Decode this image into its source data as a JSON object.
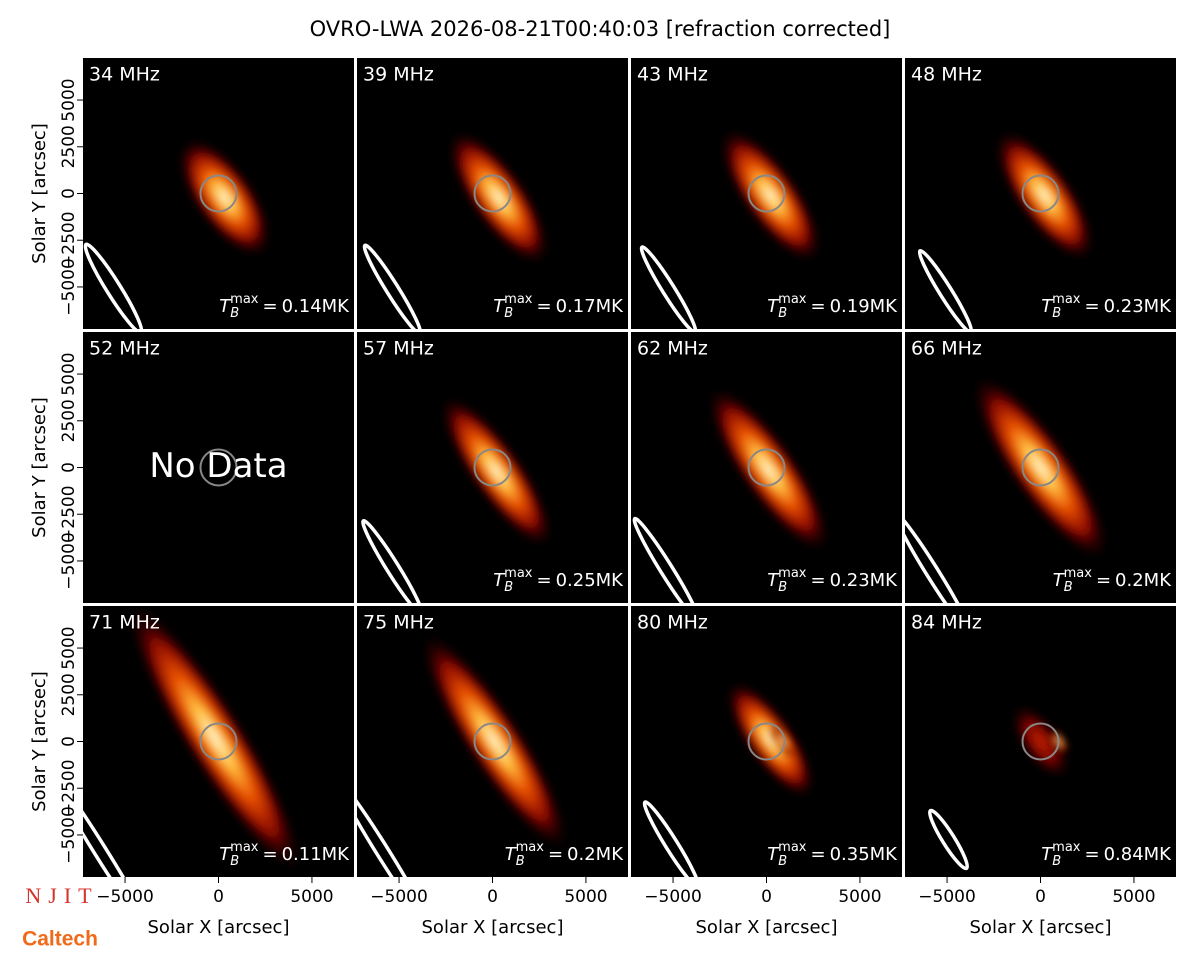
{
  "title": "OVRO-LWA 2026-08-21T00:40:03 [refraction corrected]",
  "logos": [
    "NJIT",
    "Caltech"
  ],
  "chart_data": [
    {
      "type": "image",
      "title": "34 MHz",
      "annotation": {
        "symbol": "T",
        "sub": "B",
        "sup": "max",
        "eq": "=",
        "value": "0.14MK"
      },
      "xlim": [
        -7250,
        7250
      ],
      "ylim": [
        -7250,
        7250
      ],
      "ylabel": "Solar Y [arcsec]",
      "yticks": [
        {
          "value": -5000,
          "label": "−5000"
        },
        {
          "value": -2500,
          "label": "−2500"
        },
        0,
        2500,
        5000
      ]
    },
    {
      "type": "image",
      "title": "39 MHz",
      "annotation": {
        "symbol": "T",
        "sub": "B",
        "sup": "max",
        "eq": "=",
        "value": "0.17MK"
      },
      "xlim": [
        -7250,
        7250
      ],
      "ylim": [
        -7250,
        7250
      ]
    },
    {
      "type": "image",
      "title": "43 MHz",
      "annotation": {
        "symbol": "T",
        "sub": "B",
        "sup": "max",
        "eq": "=",
        "value": "0.19MK"
      },
      "xlim": [
        -7250,
        7250
      ],
      "ylim": [
        -7250,
        7250
      ]
    },
    {
      "type": "image",
      "title": "48 MHz",
      "annotation": {
        "symbol": "T",
        "sub": "B",
        "sup": "max",
        "eq": "=",
        "value": "0.23MK"
      },
      "xlim": [
        -7250,
        7250
      ],
      "ylim": [
        -7250,
        7250
      ]
    },
    {
      "type": "image",
      "title": "52 MHz",
      "text": "No Data",
      "xlim": [
        -7250,
        7250
      ],
      "ylim": [
        -7250,
        7250
      ],
      "ylabel": "Solar Y [arcsec]",
      "yticks": [
        {
          "value": -5000,
          "label": "−5000"
        },
        {
          "value": -2500,
          "label": "−2500"
        },
        0,
        2500,
        5000
      ]
    },
    {
      "type": "image",
      "title": "57 MHz",
      "annotation": {
        "symbol": "T",
        "sub": "B",
        "sup": "max",
        "eq": "=",
        "value": "0.25MK"
      },
      "xlim": [
        -7250,
        7250
      ],
      "ylim": [
        -7250,
        7250
      ]
    },
    {
      "type": "image",
      "title": "62 MHz",
      "annotation": {
        "symbol": "T",
        "sub": "B",
        "sup": "max",
        "eq": "=",
        "value": "0.23MK"
      },
      "xlim": [
        -7250,
        7250
      ],
      "ylim": [
        -7250,
        7250
      ]
    },
    {
      "type": "image",
      "title": "66 MHz",
      "annotation": {
        "symbol": "T",
        "sub": "B",
        "sup": "max",
        "eq": "=",
        "value": "0.2MK"
      },
      "xlim": [
        -7250,
        7250
      ],
      "ylim": [
        -7250,
        7250
      ]
    },
    {
      "type": "image",
      "title": "71 MHz",
      "annotation": {
        "symbol": "T",
        "sub": "B",
        "sup": "max",
        "eq": "=",
        "value": "0.11MK"
      },
      "xlim": [
        -7250,
        7250
      ],
      "ylim": [
        -7250,
        7250
      ],
      "ylabel": "Solar Y [arcsec]",
      "yticks": [
        {
          "value": -5000,
          "label": "−5000"
        },
        {
          "value": -2500,
          "label": "−2500"
        },
        0,
        2500,
        5000
      ],
      "xlabel": "Solar X [arcsec]",
      "xticks": [
        {
          "value": -5000,
          "label": "−5000"
        },
        0,
        5000
      ]
    },
    {
      "type": "image",
      "title": "75 MHz",
      "annotation": {
        "symbol": "T",
        "sub": "B",
        "sup": "max",
        "eq": "=",
        "value": "0.2MK"
      },
      "xlim": [
        -7250,
        7250
      ],
      "ylim": [
        -7250,
        7250
      ],
      "xlabel": "Solar X [arcsec]",
      "xticks": [
        {
          "value": -5000,
          "label": "−5000"
        },
        0,
        5000
      ]
    },
    {
      "type": "image",
      "title": "80 MHz",
      "annotation": {
        "symbol": "T",
        "sub": "B",
        "sup": "max",
        "eq": "=",
        "value": "0.35MK"
      },
      "xlim": [
        -7250,
        7250
      ],
      "ylim": [
        -7250,
        7250
      ],
      "xlabel": "Solar X [arcsec]",
      "xticks": [
        {
          "value": -5000,
          "label": "−5000"
        },
        0,
        5000
      ]
    },
    {
      "type": "image",
      "title": "84 MHz",
      "annotation": {
        "symbol": "T",
        "sub": "B",
        "sup": "max",
        "eq": "=",
        "value": "0.84MK"
      },
      "xlim": [
        -7250,
        7250
      ],
      "ylim": [
        -7250,
        7250
      ],
      "xlabel": "Solar X [arcsec]",
      "xticks": [
        {
          "value": -5000,
          "label": "−5000"
        },
        0,
        5000
      ]
    }
  ]
}
